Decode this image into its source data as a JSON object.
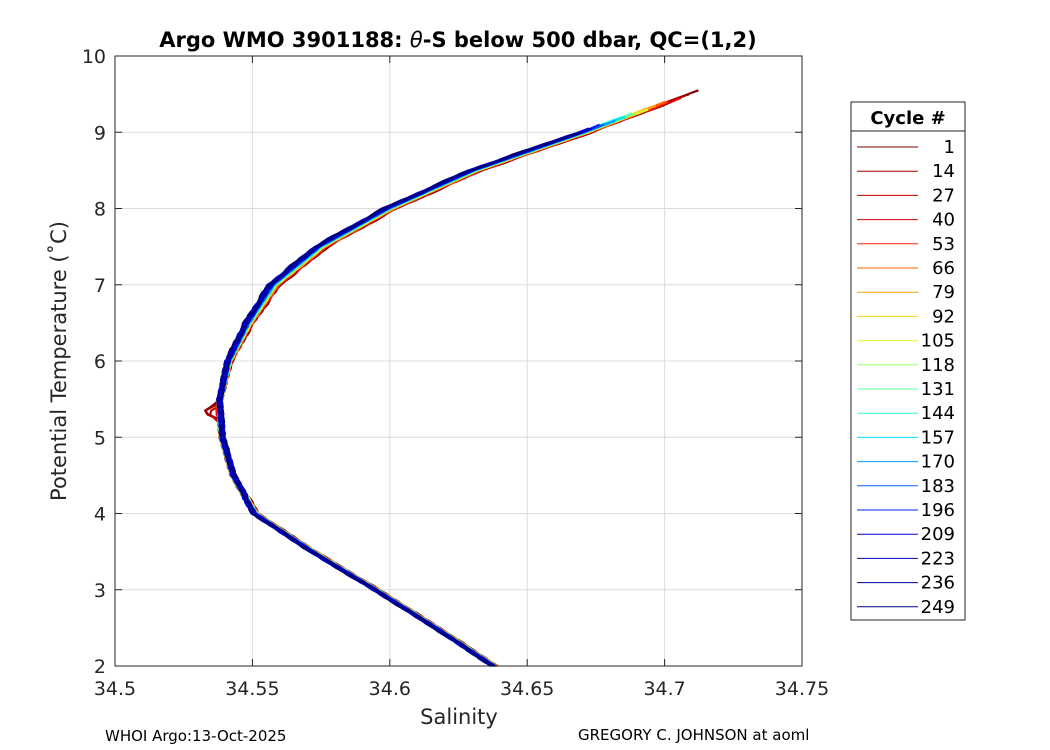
{
  "chart_data": {
    "type": "line",
    "title": "Argo WMO 3901188: θ-S below 500 dbar,  QC=(1,2)",
    "title_parts": {
      "before": "Argo WMO 3901188: ",
      "theta": "θ",
      "after": "-S below 500 dbar,  QC=(1,2)"
    },
    "xlabel": "Salinity",
    "ylabel": "Potential Temperature (˚C)",
    "xlim": [
      34.5,
      34.75
    ],
    "ylim": [
      2,
      10
    ],
    "xticks": [
      34.5,
      34.55,
      34.6,
      34.65,
      34.7,
      34.75
    ],
    "xtick_labels": [
      "34.5",
      "34.55",
      "34.6",
      "34.65",
      "34.7",
      "34.75"
    ],
    "yticks": [
      2,
      3,
      4,
      5,
      6,
      7,
      8,
      9,
      10
    ],
    "ytick_labels": [
      "2",
      "3",
      "4",
      "5",
      "6",
      "7",
      "8",
      "9",
      "10"
    ],
    "grid": true,
    "legend_position": "outside-right",
    "legend": {
      "title": "Cycle #",
      "entries": [
        {
          "label": "1",
          "color": "#800000"
        },
        {
          "label": "14",
          "color": "#9c0000"
        },
        {
          "label": "27",
          "color": "#bf0000"
        },
        {
          "label": "40",
          "color": "#df0000"
        },
        {
          "label": "53",
          "color": "#ff2000"
        },
        {
          "label": "66",
          "color": "#ff6000"
        },
        {
          "label": "79",
          "color": "#ffa000"
        },
        {
          "label": "92",
          "color": "#ffd700"
        },
        {
          "label": "105",
          "color": "#d4ff2b"
        },
        {
          "label": "118",
          "color": "#a0ff60"
        },
        {
          "label": "131",
          "color": "#60ff9f"
        },
        {
          "label": "144",
          "color": "#2dffd3"
        },
        {
          "label": "157",
          "color": "#00e0ff"
        },
        {
          "label": "170",
          "color": "#00a0ff"
        },
        {
          "label": "183",
          "color": "#0060ff"
        },
        {
          "label": "196",
          "color": "#0020ff"
        },
        {
          "label": "209",
          "color": "#0000df"
        },
        {
          "label": "223",
          "color": "#0000bf"
        },
        {
          "label": "236",
          "color": "#00009f"
        },
        {
          "label": "249",
          "color": "#000080"
        }
      ]
    },
    "series_envelope": {
      "theta": [
        2.0,
        2.5,
        3.0,
        3.5,
        4.0,
        4.5,
        5.0,
        5.5,
        6.0,
        6.5,
        7.0,
        7.5,
        8.0,
        8.5,
        9.0,
        9.55
      ],
      "salinity": [
        34.638,
        34.617,
        34.595,
        34.572,
        34.551,
        34.543,
        34.539,
        34.538,
        34.541,
        34.548,
        34.557,
        34.574,
        34.599,
        34.63,
        34.67,
        34.71
      ]
    },
    "annotations": {
      "footer_left": "WHOI Argo:13-Oct-2025",
      "footer_right": "GREGORY C. JOHNSON at aoml"
    }
  }
}
